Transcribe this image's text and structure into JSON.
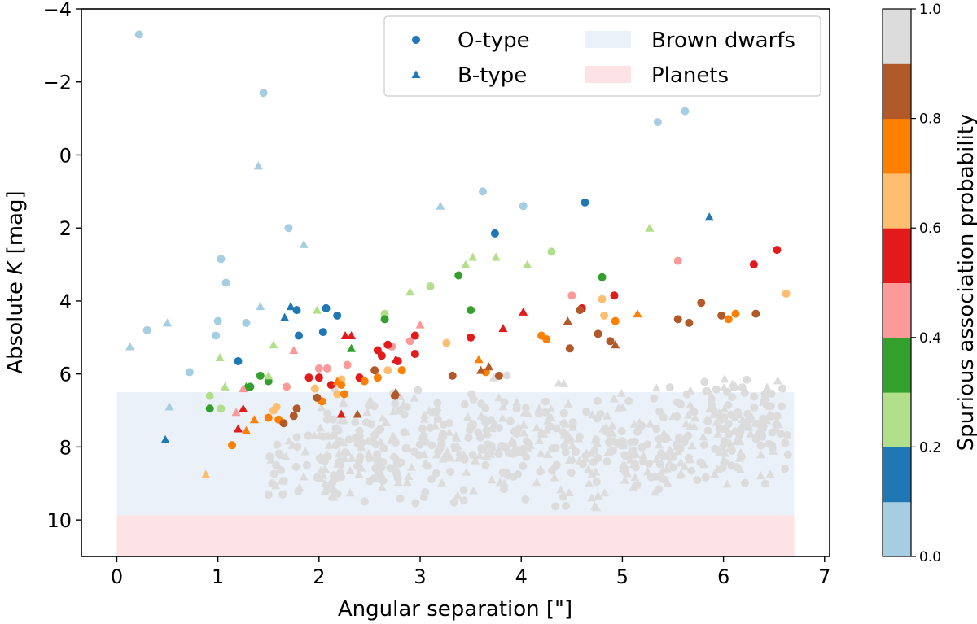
{
  "chart_data": {
    "type": "scatter",
    "xlabel": "Angular separation [\"]",
    "ylabel_prefix": "Absolute ",
    "ylabel_var": "K",
    "ylabel_suffix": " [mag]",
    "xlim": [
      -0.35,
      7.05
    ],
    "ylim": [
      11.0,
      -4.0
    ],
    "y_inverted": true,
    "xticks": [
      "0",
      "1",
      "2",
      "3",
      "4",
      "5",
      "6",
      "7"
    ],
    "yticks": [
      "−4",
      "−2",
      "0",
      "2",
      "4",
      "6",
      "8",
      "10"
    ],
    "legend": {
      "placement": "top-right",
      "entries": [
        {
          "label": "O-type",
          "marker": "circle"
        },
        {
          "label": "B-type",
          "marker": "triangle"
        },
        {
          "label": "Brown dwarfs",
          "swatch": "#eaf1f9"
        },
        {
          "label": "Planets",
          "swatch": "#fde3e6"
        }
      ]
    },
    "regions": [
      {
        "name": "Brown dwarfs",
        "x": [
          0,
          6.7
        ],
        "y": [
          6.5,
          9.87
        ],
        "color": "#eaf1f9"
      },
      {
        "name": "Planets",
        "x": [
          0,
          6.7
        ],
        "y": [
          9.87,
          11.0
        ],
        "color": "#fde3e6"
      }
    ],
    "colorbar": {
      "label": "Spurious association probability",
      "range": [
        0.0,
        1.0
      ],
      "ticks": [
        "0.0",
        "0.2",
        "0.4",
        "0.6",
        "0.8",
        "1.0"
      ],
      "colors": [
        "#a6cee3",
        "#1f78b4",
        "#b2df8a",
        "#33a02c",
        "#fb9a99",
        "#e31a1c",
        "#fdbf6f",
        "#ff7f00",
        "#b15928",
        "#dcdcdc"
      ]
    },
    "series": [
      {
        "marker": "circle",
        "points": [
          [
            0.22,
            -3.3,
            0.05
          ],
          [
            1.45,
            -1.7,
            0.05
          ],
          [
            5.35,
            -0.9,
            0.05
          ],
          [
            5.62,
            -1.2,
            0.05
          ],
          [
            3.62,
            1.0,
            0.05
          ],
          [
            4.02,
            1.4,
            0.05
          ],
          [
            1.7,
            2.0,
            0.05
          ],
          [
            1.03,
            2.85,
            0.05
          ],
          [
            1.08,
            3.5,
            0.05
          ],
          [
            0.3,
            4.8,
            0.05
          ],
          [
            0.72,
            5.95,
            0.05
          ],
          [
            0.98,
            4.95,
            0.05
          ],
          [
            1.0,
            4.55,
            0.05
          ],
          [
            1.28,
            4.6,
            0.05
          ],
          [
            4.63,
            1.3,
            0.15
          ],
          [
            3.74,
            2.15,
            0.15
          ],
          [
            1.78,
            4.25,
            0.15
          ],
          [
            1.8,
            4.95,
            0.15
          ],
          [
            2.07,
            4.2,
            0.15
          ],
          [
            2.18,
            4.4,
            0.15
          ],
          [
            2.04,
            4.85,
            0.15
          ],
          [
            1.2,
            5.65,
            0.15
          ],
          [
            2.65,
            4.35,
            0.25
          ],
          [
            3.1,
            3.6,
            0.25
          ],
          [
            4.3,
            2.65,
            0.25
          ],
          [
            0.92,
            6.6,
            0.25
          ],
          [
            1.03,
            6.95,
            0.25
          ],
          [
            3.38,
            3.3,
            0.35
          ],
          [
            3.5,
            4.25,
            0.35
          ],
          [
            4.8,
            3.35,
            0.35
          ],
          [
            2.65,
            4.5,
            0.35
          ],
          [
            1.42,
            6.05,
            0.35
          ],
          [
            1.5,
            6.2,
            0.35
          ],
          [
            0.92,
            6.95,
            0.35
          ],
          [
            1.32,
            6.35,
            0.35
          ],
          [
            5.55,
            2.9,
            0.45
          ],
          [
            4.5,
            3.85,
            0.45
          ],
          [
            2.9,
            5.1,
            0.45
          ],
          [
            2.08,
            5.85,
            0.45
          ],
          [
            2.0,
            5.85,
            0.45
          ],
          [
            2.28,
            5.75,
            0.45
          ],
          [
            1.68,
            6.35,
            0.45
          ],
          [
            2.72,
            5.25,
            0.45
          ],
          [
            6.53,
            2.6,
            0.55
          ],
          [
            6.3,
            3.0,
            0.55
          ],
          [
            4.92,
            3.85,
            0.55
          ],
          [
            4.6,
            4.2,
            0.55
          ],
          [
            3.5,
            5.0,
            0.55
          ],
          [
            2.58,
            5.35,
            0.55
          ],
          [
            2.62,
            5.5,
            0.55
          ],
          [
            2.68,
            5.2,
            0.55
          ],
          [
            2.78,
            5.65,
            0.55
          ],
          [
            2.95,
            5.45,
            0.55
          ],
          [
            2.95,
            4.95,
            0.55
          ],
          [
            2.4,
            6.1,
            0.55
          ],
          [
            2.0,
            6.1,
            0.55
          ],
          [
            2.12,
            6.3,
            0.55
          ],
          [
            1.9,
            6.1,
            0.55
          ],
          [
            6.62,
            3.8,
            0.65
          ],
          [
            4.8,
            3.95,
            0.65
          ],
          [
            4.82,
            4.4,
            0.65
          ],
          [
            3.26,
            5.15,
            0.65
          ],
          [
            2.22,
            6.15,
            0.65
          ],
          [
            2.68,
            5.9,
            0.65
          ],
          [
            1.96,
            6.4,
            0.65
          ],
          [
            2.18,
            6.55,
            0.65
          ],
          [
            1.58,
            6.9,
            0.65
          ],
          [
            1.55,
            7.0,
            0.65
          ],
          [
            6.12,
            4.35,
            0.75
          ],
          [
            6.05,
            4.5,
            0.75
          ],
          [
            4.93,
            4.55,
            0.75
          ],
          [
            4.2,
            4.95,
            0.75
          ],
          [
            4.25,
            5.05,
            0.75
          ],
          [
            2.45,
            6.2,
            0.75
          ],
          [
            2.58,
            6.1,
            0.75
          ],
          [
            2.82,
            5.9,
            0.75
          ],
          [
            3.65,
            5.95,
            0.75
          ],
          [
            2.03,
            6.75,
            0.75
          ],
          [
            2.25,
            6.55,
            0.75
          ],
          [
            2.22,
            6.3,
            0.75
          ],
          [
            1.5,
            7.2,
            0.75
          ],
          [
            1.6,
            7.25,
            0.75
          ],
          [
            1.14,
            7.95,
            0.75
          ],
          [
            5.78,
            4.05,
            0.85
          ],
          [
            6.32,
            4.35,
            0.85
          ],
          [
            5.98,
            4.4,
            0.85
          ],
          [
            5.55,
            4.5,
            0.85
          ],
          [
            5.66,
            4.6,
            0.85
          ],
          [
            4.58,
            4.25,
            0.85
          ],
          [
            4.48,
            5.3,
            0.85
          ],
          [
            4.76,
            4.9,
            0.85
          ],
          [
            4.88,
            5.1,
            0.85
          ],
          [
            2.55,
            5.9,
            0.85
          ],
          [
            3.32,
            6.05,
            0.85
          ],
          [
            3.78,
            6.05,
            0.85
          ],
          [
            2.75,
            6.6,
            0.85
          ],
          [
            1.98,
            6.65,
            0.85
          ],
          [
            1.78,
            6.95,
            0.85
          ],
          [
            1.75,
            7.15,
            0.85
          ],
          [
            1.65,
            7.35,
            0.85
          ]
        ]
      },
      {
        "marker": "triangle",
        "points": [
          [
            1.4,
            0.3,
            0.05
          ],
          [
            3.2,
            1.4,
            0.05
          ],
          [
            1.85,
            2.45,
            0.05
          ],
          [
            0.5,
            4.6,
            0.05
          ],
          [
            0.13,
            5.25,
            0.05
          ],
          [
            1.42,
            4.15,
            0.05
          ],
          [
            0.52,
            6.9,
            0.05
          ],
          [
            5.86,
            1.7,
            0.15
          ],
          [
            0.48,
            7.8,
            0.15
          ],
          [
            1.66,
            4.45,
            0.15
          ],
          [
            1.72,
            4.15,
            0.15
          ],
          [
            5.27,
            2.0,
            0.25
          ],
          [
            3.52,
            2.8,
            0.25
          ],
          [
            3.75,
            2.8,
            0.25
          ],
          [
            4.06,
            3.0,
            0.25
          ],
          [
            3.45,
            3.0,
            0.25
          ],
          [
            2.9,
            3.75,
            0.25
          ],
          [
            1.98,
            4.25,
            0.25
          ],
          [
            1.02,
            5.55,
            0.25
          ],
          [
            1.55,
            5.2,
            0.25
          ],
          [
            1.07,
            6.35,
            0.25
          ],
          [
            1.5,
            6.05,
            0.25
          ],
          [
            2.32,
            5.3,
            0.35
          ],
          [
            1.28,
            6.35,
            0.35
          ],
          [
            3.0,
            4.65,
            0.45
          ],
          [
            1.75,
            5.35,
            0.45
          ],
          [
            1.18,
            7.05,
            0.45
          ],
          [
            1.25,
            6.4,
            0.45
          ],
          [
            4.02,
            4.3,
            0.55
          ],
          [
            3.82,
            4.75,
            0.55
          ],
          [
            2.26,
            4.95,
            0.55
          ],
          [
            2.32,
            4.95,
            0.55
          ],
          [
            2.76,
            5.6,
            0.55
          ],
          [
            1.25,
            6.95,
            0.55
          ],
          [
            1.2,
            7.5,
            0.55
          ],
          [
            2.22,
            7.1,
            0.55
          ],
          [
            0.88,
            8.75,
            0.65
          ],
          [
            5.15,
            4.35,
            0.75
          ],
          [
            3.58,
            5.6,
            0.75
          ],
          [
            2.18,
            6.2,
            0.75
          ],
          [
            1.36,
            7.25,
            0.75
          ],
          [
            1.28,
            7.55,
            0.75
          ],
          [
            4.46,
            4.55,
            0.85
          ],
          [
            4.93,
            5.2,
            0.85
          ],
          [
            3.68,
            5.8,
            0.85
          ],
          [
            3.6,
            5.9,
            0.85
          ],
          [
            2.76,
            6.5,
            0.85
          ],
          [
            2.38,
            7.1,
            0.85
          ]
        ]
      }
    ]
  }
}
